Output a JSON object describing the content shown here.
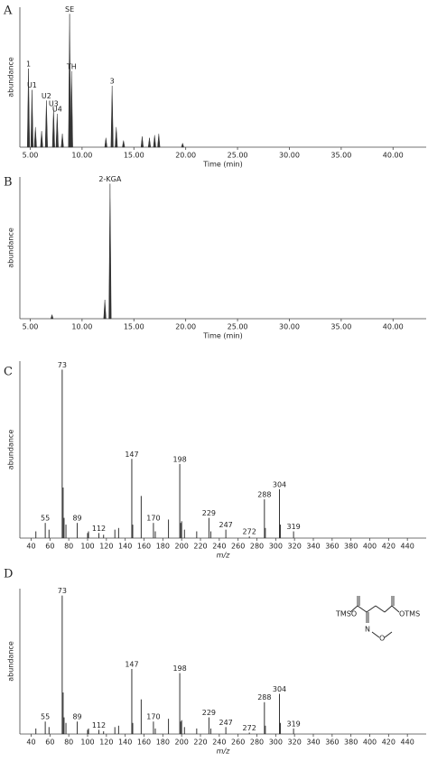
{
  "chart_data": [
    {
      "type": "chromatogram",
      "panel": "A",
      "y_label": "abundance",
      "x_label": "Time (min)",
      "color": "#333333",
      "x": [
        4.83,
        5.17,
        5.5,
        6.1,
        6.56,
        7.25,
        7.6,
        8.1,
        8.8,
        8.99,
        12.3,
        12.9,
        13.3,
        14.0,
        15.8,
        16.5,
        17.0,
        17.4,
        19.7
      ],
      "values": [
        59,
        43,
        15,
        12,
        35,
        29,
        25,
        10,
        100,
        57,
        7,
        46,
        15,
        5,
        8,
        7,
        9,
        10,
        3
      ],
      "peak_labels": [
        "1",
        "U1",
        null,
        null,
        "U2",
        "U3",
        "U4",
        null,
        "SE",
        "TH",
        null,
        "3",
        null,
        null,
        null,
        null,
        null,
        null,
        null
      ],
      "xlim": [
        4.0,
        43.2
      ],
      "ylim": [
        0,
        105
      ],
      "xticks": [
        {
          "value": 5,
          "label": "5.00"
        },
        {
          "value": 10,
          "label": "10.00"
        },
        {
          "value": 15,
          "label": "15.00"
        },
        {
          "value": 20,
          "label": "20.00"
        },
        {
          "value": 25,
          "label": "25.00"
        },
        {
          "value": 30,
          "label": "30.00"
        },
        {
          "value": 35,
          "label": "35.00"
        },
        {
          "value": 40,
          "label": "40.00"
        }
      ]
    },
    {
      "type": "chromatogram",
      "panel": "B",
      "y_label": "abundance",
      "x_label": "Time (min)",
      "color": "#333333",
      "x": [
        7.1,
        12.2,
        12.7
      ],
      "values": [
        3,
        14,
        100
      ],
      "peak_labels": [
        null,
        null,
        "2-KGA"
      ],
      "xlim": [
        4.0,
        43.2
      ],
      "ylim": [
        0,
        105
      ],
      "xticks": [
        {
          "value": 5,
          "label": "5.00"
        },
        {
          "value": 10,
          "label": "10.00"
        },
        {
          "value": 15,
          "label": "15.00"
        },
        {
          "value": 20,
          "label": "20.00"
        },
        {
          "value": 25,
          "label": "25.00"
        },
        {
          "value": 30,
          "label": "30.00"
        },
        {
          "value": 35,
          "label": "35.00"
        },
        {
          "value": 40,
          "label": "40.00"
        }
      ]
    },
    {
      "type": "spectrum",
      "panel": "C",
      "y_label": "abundance",
      "x_label": "m/z",
      "color": "#333333",
      "x": [
        45,
        55,
        59,
        73,
        74,
        75,
        77,
        89,
        100,
        101,
        112,
        117,
        129,
        133,
        147,
        148,
        157,
        170,
        172,
        186,
        198,
        199,
        200,
        203,
        216,
        229,
        231,
        247,
        272,
        288,
        289,
        304,
        305,
        319
      ],
      "values": [
        4,
        9,
        5,
        100,
        30,
        12,
        8,
        9,
        3,
        4,
        3,
        2,
        5,
        6,
        47,
        8,
        25,
        9,
        4,
        11,
        44,
        9,
        10,
        5,
        4,
        12,
        4,
        5,
        1,
        23,
        6,
        29,
        8,
        4
      ],
      "peak_labels": [
        null,
        "55",
        null,
        "73",
        null,
        null,
        null,
        "89",
        null,
        null,
        "112",
        null,
        null,
        null,
        "147",
        null,
        null,
        "170",
        null,
        null,
        "198",
        null,
        null,
        null,
        null,
        "229",
        null,
        "247",
        "272",
        "288",
        null,
        "304",
        null,
        "319"
      ],
      "xlim": [
        28,
        460
      ],
      "ylim": [
        0,
        105
      ],
      "xticks": [
        40,
        60,
        80,
        100,
        120,
        140,
        160,
        180,
        200,
        220,
        240,
        260,
        280,
        300,
        320,
        340,
        360,
        380,
        400,
        420,
        440
      ]
    },
    {
      "type": "spectrum",
      "panel": "D",
      "y_label": "abundance",
      "x_label": "m/z",
      "color": "#333333",
      "x": [
        45,
        55,
        59,
        73,
        74,
        75,
        77,
        89,
        100,
        101,
        112,
        117,
        129,
        133,
        147,
        148,
        157,
        170,
        172,
        186,
        198,
        199,
        200,
        203,
        216,
        229,
        231,
        247,
        272,
        288,
        289,
        304,
        305,
        319
      ],
      "values": [
        4,
        9,
        5,
        100,
        30,
        12,
        8,
        9,
        3,
        4,
        3,
        2,
        5,
        6,
        47,
        8,
        25,
        9,
        4,
        11,
        44,
        9,
        10,
        5,
        4,
        12,
        4,
        5,
        1,
        23,
        6,
        29,
        8,
        4
      ],
      "peak_labels": [
        null,
        "55",
        null,
        "73",
        null,
        null,
        null,
        "89",
        null,
        null,
        "112",
        null,
        null,
        null,
        "147",
        null,
        null,
        "170",
        null,
        null,
        "198",
        null,
        null,
        null,
        null,
        "229",
        null,
        "247",
        "272",
        "288",
        null,
        "304",
        null,
        "319"
      ],
      "xlim": [
        28,
        460
      ],
      "ylim": [
        0,
        105
      ],
      "xticks": [
        40,
        60,
        80,
        100,
        120,
        140,
        160,
        180,
        200,
        220,
        240,
        260,
        280,
        300,
        320,
        340,
        360,
        380,
        400,
        420,
        440
      ],
      "structure_labels": [
        "TMSO",
        "OTMS",
        "N",
        "O"
      ]
    }
  ]
}
